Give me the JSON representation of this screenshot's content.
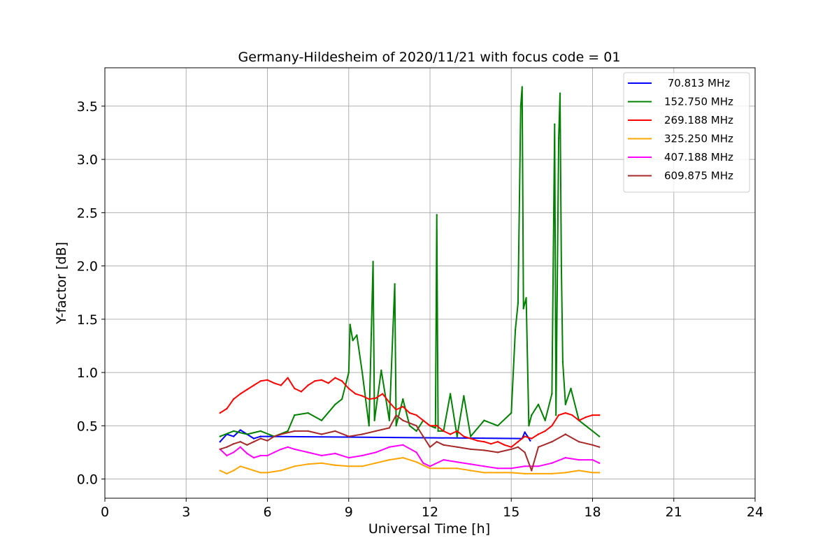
{
  "chart_data": {
    "type": "line",
    "title": "Germany-Hildesheim of 2020/11/21 with focus code = 01",
    "xlabel": "Universal Time [h]",
    "ylabel": "Y-factor [dB]",
    "xlim": [
      0,
      24
    ],
    "ylim": [
      -0.18,
      3.86
    ],
    "xticks": [
      0,
      3,
      6,
      9,
      12,
      15,
      18,
      21,
      24
    ],
    "xtick_labels": [
      "0",
      "3",
      "6",
      "9",
      "12",
      "15",
      "18",
      "21",
      "24"
    ],
    "yticks": [
      0.0,
      0.5,
      1.0,
      1.5,
      2.0,
      2.5,
      3.0,
      3.5
    ],
    "ytick_labels": [
      "0.0",
      "0.5",
      "1.0",
      "1.5",
      "2.0",
      "2.5",
      "3.0",
      "3.5"
    ],
    "grid": true,
    "legend_position": "top-right",
    "series": [
      {
        "name": " 70.813 MHz",
        "color": "#0000ff",
        "x": [
          4.25,
          4.5,
          4.75,
          5.0,
          5.25,
          5.5,
          5.75,
          6.0,
          15.4,
          15.5,
          15.6,
          15.7
        ],
        "y": [
          0.35,
          0.42,
          0.4,
          0.46,
          0.42,
          0.38,
          0.4,
          0.4,
          0.38,
          0.44,
          0.4,
          0.36
        ]
      },
      {
        "name": "152.750 MHz",
        "color": "#008000",
        "x": [
          4.25,
          4.75,
          5.25,
          5.75,
          6.25,
          6.75,
          7.0,
          7.5,
          8.0,
          8.5,
          8.75,
          9.0,
          9.05,
          9.15,
          9.3,
          9.5,
          9.75,
          9.9,
          9.95,
          10.2,
          10.5,
          10.7,
          10.75,
          11.0,
          11.25,
          11.5,
          11.75,
          12.0,
          12.2,
          12.25,
          12.3,
          12.5,
          12.75,
          13.0,
          13.25,
          13.5,
          14.0,
          14.5,
          15.0,
          15.15,
          15.25,
          15.35,
          15.4,
          15.45,
          15.55,
          15.65,
          15.75,
          16.0,
          16.25,
          16.5,
          16.6,
          16.65,
          16.75,
          16.8,
          16.85,
          16.9,
          17.0,
          17.2,
          17.5,
          17.75,
          18.0,
          18.25
        ],
        "y": [
          0.4,
          0.45,
          0.42,
          0.45,
          0.4,
          0.45,
          0.6,
          0.62,
          0.55,
          0.7,
          0.75,
          1.0,
          1.45,
          1.3,
          1.35,
          1.0,
          0.5,
          2.04,
          0.55,
          1.02,
          0.55,
          1.83,
          0.5,
          0.75,
          0.5,
          0.45,
          0.55,
          0.5,
          0.48,
          2.48,
          0.45,
          0.45,
          0.8,
          0.4,
          0.78,
          0.4,
          0.55,
          0.5,
          0.62,
          1.4,
          1.65,
          3.5,
          3.68,
          1.6,
          1.7,
          0.5,
          0.6,
          0.7,
          0.55,
          0.8,
          3.33,
          0.6,
          3.2,
          3.62,
          2.0,
          1.1,
          0.7,
          0.85,
          0.55,
          0.5,
          0.45,
          0.4
        ]
      },
      {
        "name": "269.188 MHz",
        "color": "#ff0000",
        "x": [
          4.25,
          4.5,
          4.75,
          5.0,
          5.25,
          5.5,
          5.75,
          6.0,
          6.25,
          6.5,
          6.75,
          7.0,
          7.25,
          7.5,
          7.75,
          8.0,
          8.25,
          8.5,
          8.75,
          9.0,
          9.25,
          9.5,
          9.75,
          10.0,
          10.25,
          10.5,
          10.75,
          11.0,
          11.25,
          11.5,
          11.75,
          12.0,
          12.25,
          12.5,
          12.75,
          13.0,
          13.25,
          13.5,
          13.75,
          14.0,
          14.25,
          14.5,
          14.75,
          15.0,
          15.25,
          15.5,
          15.75,
          16.0,
          16.25,
          16.5,
          16.75,
          17.0,
          17.25,
          17.5,
          17.75,
          18.0,
          18.25
        ],
        "y": [
          0.62,
          0.66,
          0.75,
          0.8,
          0.84,
          0.88,
          0.92,
          0.93,
          0.9,
          0.88,
          0.95,
          0.85,
          0.82,
          0.88,
          0.92,
          0.93,
          0.9,
          0.95,
          0.92,
          0.85,
          0.8,
          0.78,
          0.75,
          0.76,
          0.8,
          0.72,
          0.65,
          0.68,
          0.62,
          0.6,
          0.55,
          0.5,
          0.5,
          0.45,
          0.42,
          0.45,
          0.4,
          0.38,
          0.36,
          0.35,
          0.33,
          0.35,
          0.32,
          0.3,
          0.35,
          0.4,
          0.38,
          0.42,
          0.45,
          0.5,
          0.6,
          0.62,
          0.6,
          0.55,
          0.58,
          0.6,
          0.6
        ]
      },
      {
        "name": "325.250 MHz",
        "color": "#ffa500",
        "x": [
          4.25,
          4.5,
          4.75,
          5.0,
          5.25,
          5.5,
          5.75,
          6.0,
          6.5,
          7.0,
          7.5,
          8.0,
          8.5,
          9.0,
          9.5,
          10.0,
          10.5,
          11.0,
          11.5,
          12.0,
          12.5,
          13.0,
          13.5,
          14.0,
          14.5,
          15.0,
          15.5,
          16.0,
          16.5,
          17.0,
          17.5,
          18.0,
          18.25
        ],
        "y": [
          0.08,
          0.05,
          0.08,
          0.12,
          0.1,
          0.08,
          0.06,
          0.06,
          0.08,
          0.12,
          0.14,
          0.15,
          0.13,
          0.12,
          0.12,
          0.15,
          0.18,
          0.2,
          0.16,
          0.1,
          0.1,
          0.1,
          0.08,
          0.06,
          0.06,
          0.06,
          0.05,
          0.05,
          0.05,
          0.06,
          0.08,
          0.06,
          0.06
        ]
      },
      {
        "name": "407.188 MHz",
        "color": "#ff00ff",
        "x": [
          4.25,
          4.5,
          4.75,
          5.0,
          5.25,
          5.5,
          5.75,
          6.0,
          6.25,
          6.5,
          6.75,
          7.0,
          7.5,
          8.0,
          8.5,
          9.0,
          9.5,
          10.0,
          10.5,
          11.0,
          11.5,
          11.75,
          12.0,
          12.5,
          13.0,
          13.5,
          14.0,
          14.5,
          15.0,
          15.5,
          16.0,
          16.5,
          17.0,
          17.5,
          18.0,
          18.25
        ],
        "y": [
          0.28,
          0.22,
          0.25,
          0.3,
          0.24,
          0.2,
          0.22,
          0.22,
          0.25,
          0.28,
          0.3,
          0.28,
          0.25,
          0.22,
          0.24,
          0.2,
          0.22,
          0.25,
          0.3,
          0.32,
          0.25,
          0.15,
          0.12,
          0.18,
          0.16,
          0.14,
          0.12,
          0.1,
          0.1,
          0.12,
          0.12,
          0.15,
          0.2,
          0.18,
          0.18,
          0.15
        ]
      },
      {
        "name": "609.875 MHz",
        "color": "#a52a2a",
        "x": [
          4.25,
          4.5,
          4.75,
          5.0,
          5.25,
          5.5,
          5.75,
          6.0,
          6.25,
          6.5,
          7.0,
          7.5,
          8.0,
          8.5,
          9.0,
          9.5,
          10.0,
          10.5,
          10.75,
          11.0,
          11.5,
          11.75,
          12.0,
          12.25,
          12.5,
          13.0,
          13.5,
          14.0,
          14.5,
          15.0,
          15.25,
          15.5,
          15.75,
          16.0,
          16.5,
          17.0,
          17.5,
          18.0,
          18.25
        ],
        "y": [
          0.28,
          0.3,
          0.33,
          0.35,
          0.32,
          0.35,
          0.38,
          0.36,
          0.4,
          0.42,
          0.45,
          0.45,
          0.42,
          0.45,
          0.4,
          0.42,
          0.45,
          0.48,
          0.6,
          0.55,
          0.5,
          0.4,
          0.3,
          0.35,
          0.32,
          0.3,
          0.28,
          0.27,
          0.25,
          0.28,
          0.3,
          0.25,
          0.08,
          0.3,
          0.35,
          0.42,
          0.35,
          0.32,
          0.3
        ]
      }
    ]
  }
}
